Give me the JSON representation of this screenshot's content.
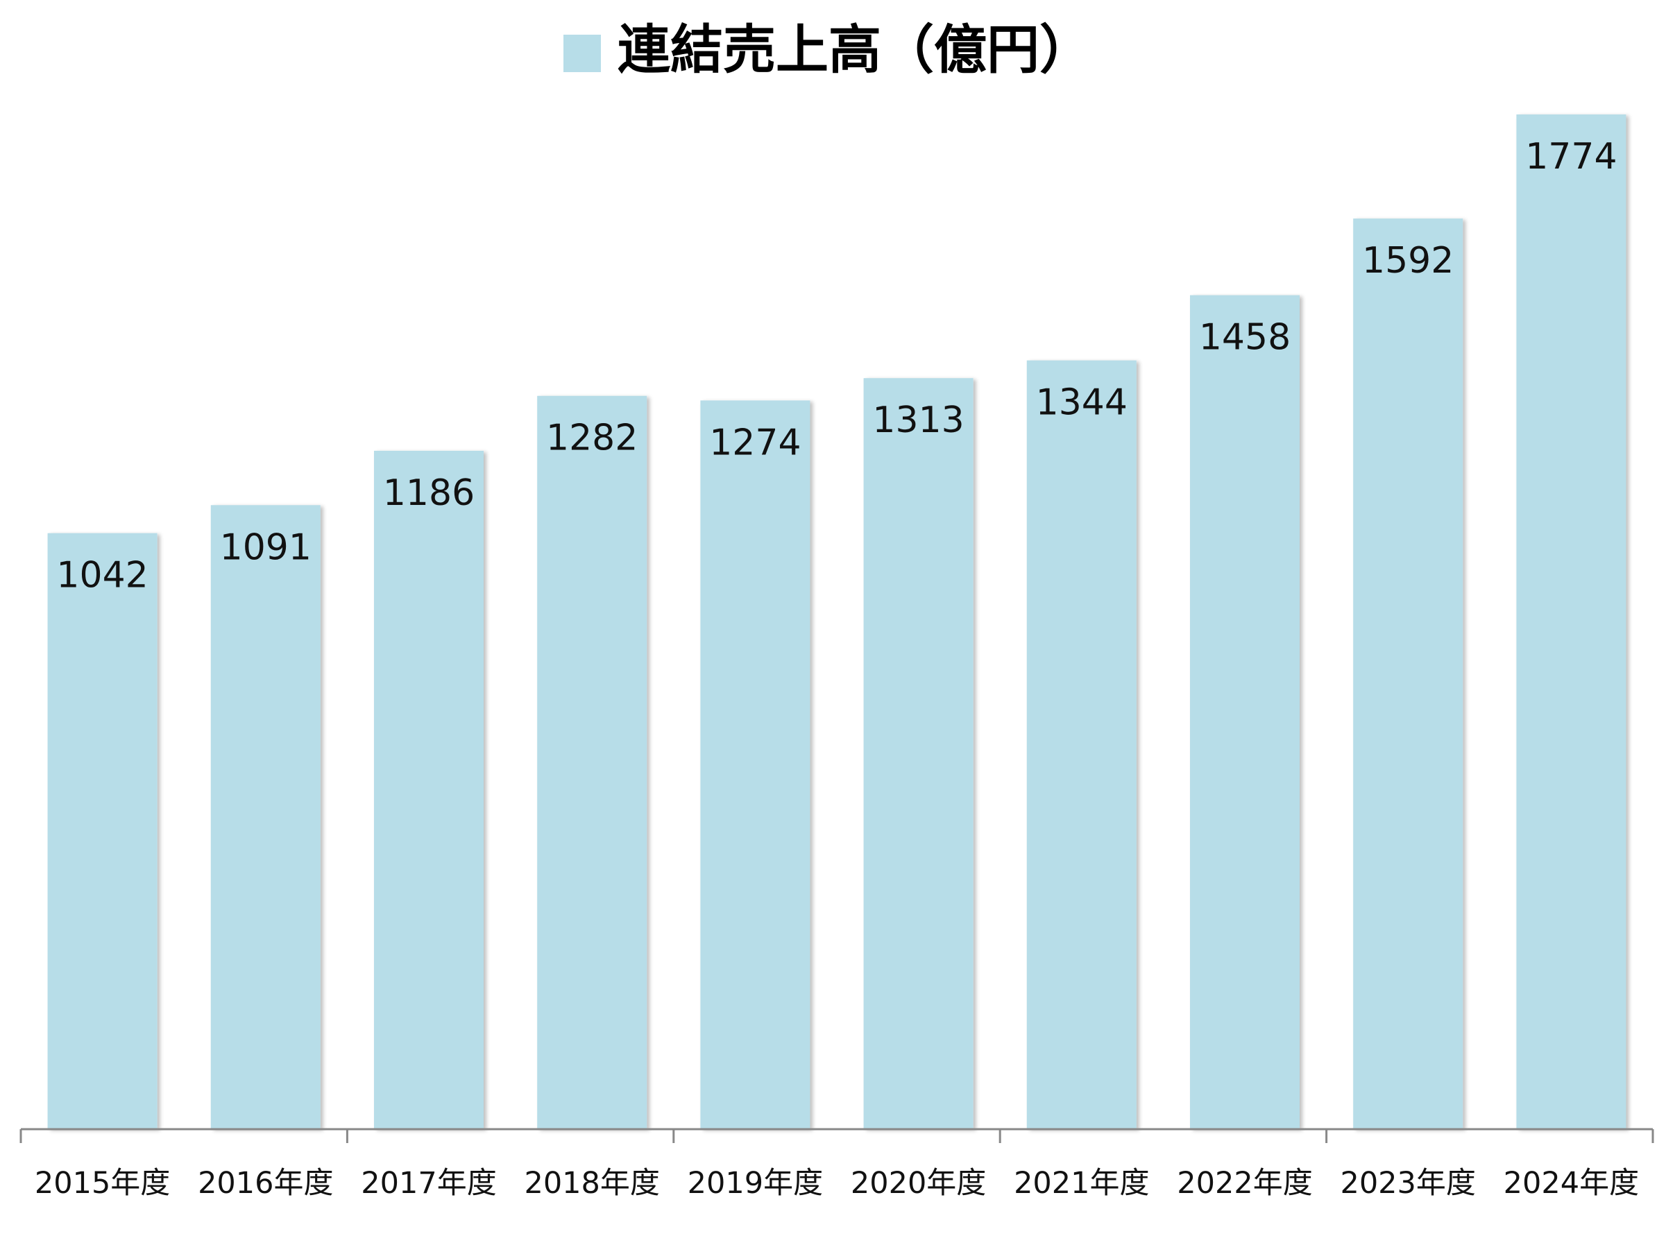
{
  "chart_data": {
    "type": "bar",
    "title": "",
    "xlabel": "",
    "ylabel": "",
    "categories": [
      "2015年度",
      "2016年度",
      "2017年度",
      "2018年度",
      "2019年度",
      "2020年度",
      "2021年度",
      "2022年度",
      "2023年度",
      "2024年度"
    ],
    "series": [
      {
        "name": "連結売上高（億円）",
        "values": [
          1042,
          1091,
          1186,
          1282,
          1274,
          1313,
          1344,
          1458,
          1592,
          1774
        ],
        "color": "#b7dde8"
      }
    ],
    "ylim": [
      0,
      1774
    ],
    "legend": "top-center",
    "grid": false,
    "data_labels": true,
    "axis_color": "#888888"
  }
}
